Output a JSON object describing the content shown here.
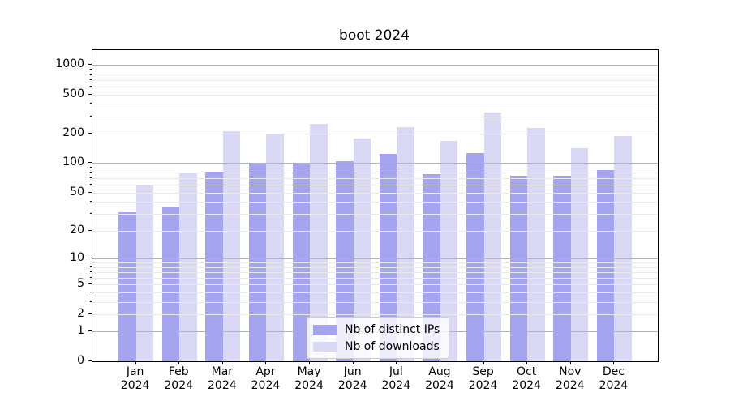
{
  "title": "boot 2024",
  "chart_data": {
    "type": "bar",
    "title": "boot 2024",
    "categories": [
      "Jan 2024",
      "Feb 2024",
      "Mar 2024",
      "Apr 2024",
      "May 2024",
      "Jun 2024",
      "Jul 2024",
      "Aug 2024",
      "Sep 2024",
      "Oct 2024",
      "Nov 2024",
      "Dec 2024"
    ],
    "x_months": [
      "Jan",
      "Feb",
      "Mar",
      "Apr",
      "May",
      "Jun",
      "Jul",
      "Aug",
      "Sep",
      "Oct",
      "Nov",
      "Dec"
    ],
    "x_year": "2024",
    "series": [
      {
        "name": "Nb of distinct IPs",
        "color": "#a5a5ef",
        "values": [
          31,
          35,
          82,
          100,
          100,
          105,
          124,
          77,
          126,
          74,
          74,
          85
        ]
      },
      {
        "name": "Nb of downloads",
        "color": "#d9d9f6",
        "values": [
          60,
          80,
          210,
          200,
          252,
          178,
          231,
          170,
          327,
          227,
          142,
          188
        ]
      }
    ],
    "y_scale": "log1p",
    "ylim": [
      0,
      1400
    ],
    "y_tick_labels": [
      1000,
      500,
      200,
      100,
      50,
      20,
      10,
      5,
      2,
      1,
      0
    ],
    "y_major_grid": [
      1,
      10,
      100,
      1000
    ],
    "y_minor_grid": [
      2,
      3,
      4,
      5,
      6,
      7,
      8,
      9,
      20,
      30,
      40,
      50,
      60,
      70,
      80,
      90,
      200,
      300,
      400,
      500,
      600,
      700,
      800,
      900
    ],
    "legend": {
      "labels": [
        "Nb of distinct IPs",
        "Nb of downloads"
      ],
      "position": "lower center"
    },
    "grid": true
  },
  "colors": {
    "bar_distinct_ips": "#a5a5ef",
    "bar_downloads": "#d9d9f6",
    "grid_major": "#b2b2b2",
    "grid_minor": "#e9e9e9",
    "spine": "#000000",
    "background": "#ffffff",
    "legend_border": "#cccccc",
    "text": "#000000"
  }
}
